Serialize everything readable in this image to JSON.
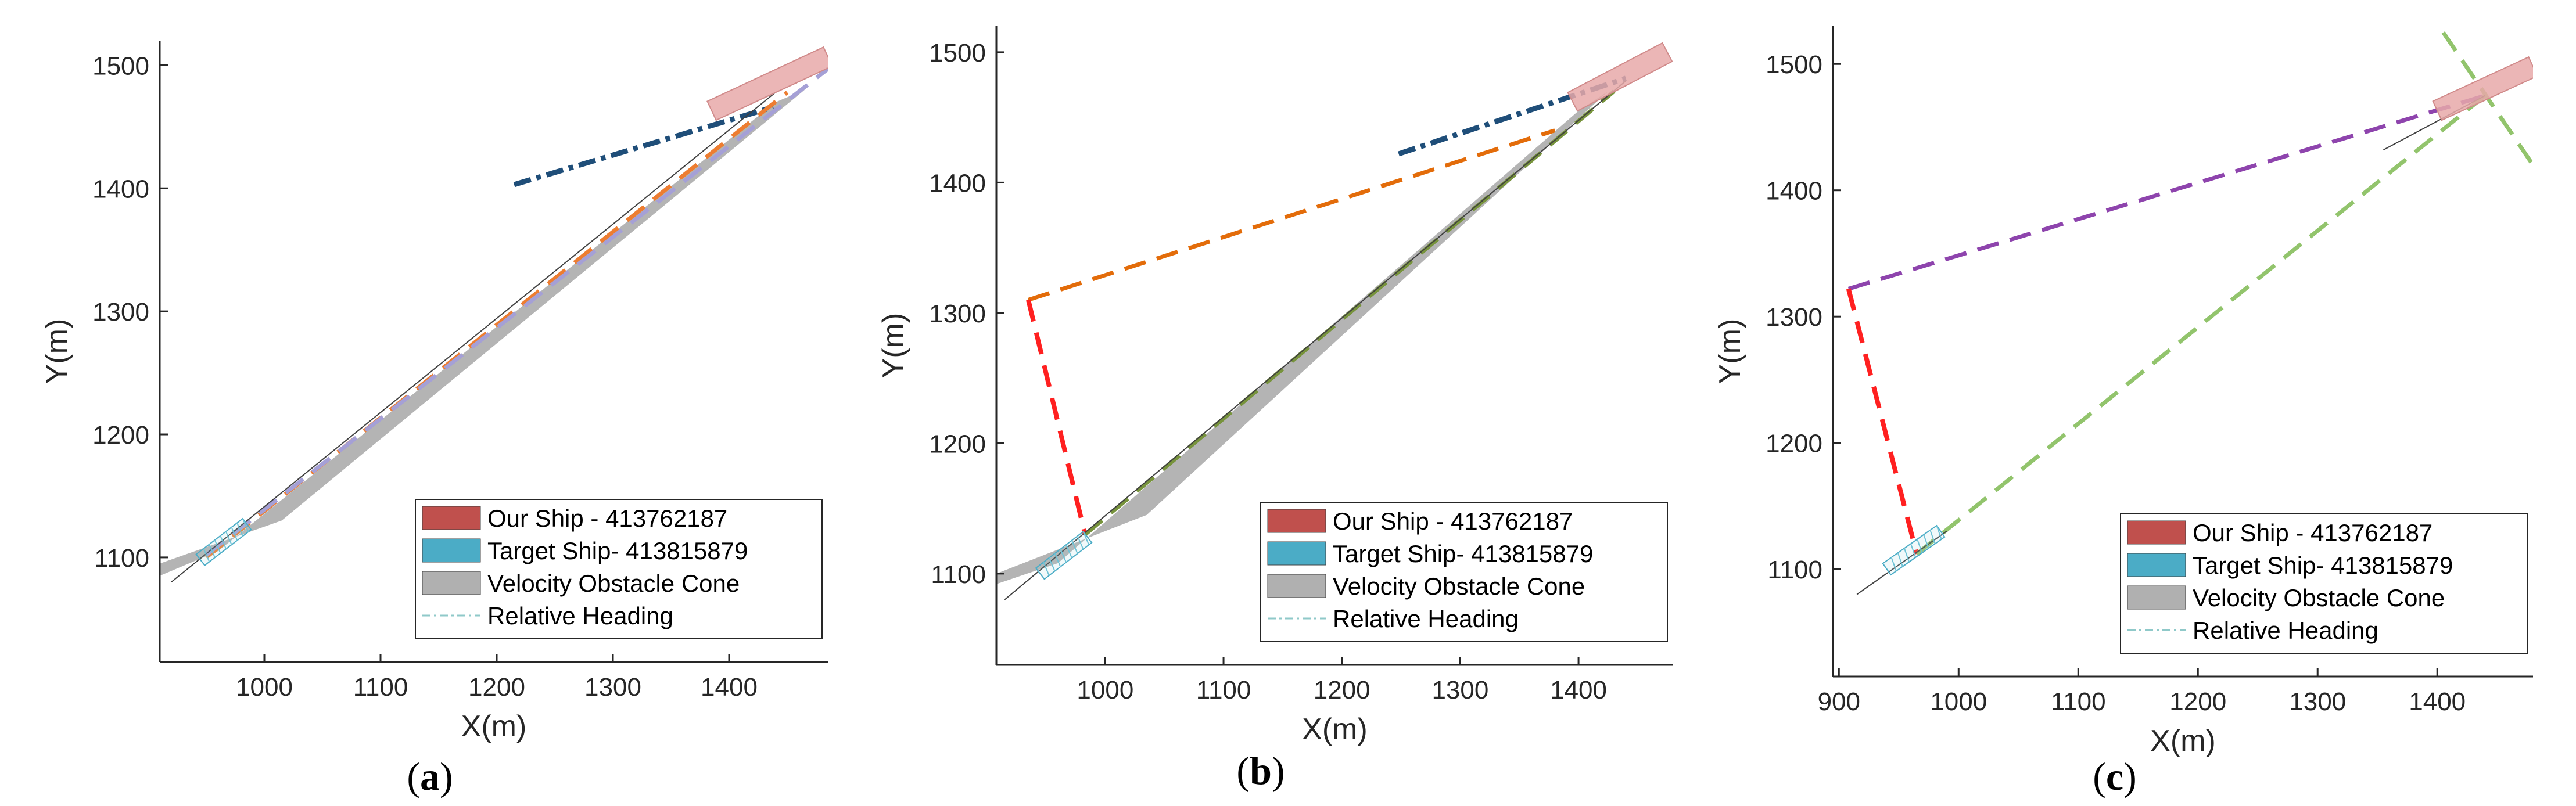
{
  "chart_data": [
    {
      "type": "line",
      "panel": "a",
      "caption": {
        "open": "(",
        "letter": "a",
        "close": ")"
      },
      "xlabel": "X(m)",
      "ylabel": "Y(m)",
      "xlim": [
        910,
        1485
      ],
      "ylim": [
        1015,
        1520
      ],
      "xticks": [
        1000,
        1100,
        1200,
        1300,
        1400
      ],
      "yticks": [
        1100,
        1200,
        1300,
        1400,
        1500
      ],
      "grid": false,
      "legend_position": "bottom-right",
      "legend": [
        {
          "label": "Our Ship - 413762187",
          "kind": "box",
          "color": "#c0504d"
        },
        {
          "label": "Target Ship- 413815879",
          "kind": "box",
          "color": "#4bacc6"
        },
        {
          "label": "Velocity Obstacle Cone",
          "kind": "box",
          "color": "#b0b0b0"
        },
        {
          "label": "Relative Heading",
          "kind": "line",
          "color": "#8fc9c9"
        }
      ],
      "cone": {
        "x": [
          910,
          960,
          1440,
          1465,
          1015,
          910
        ],
        "y": [
          1085,
          1105,
          1470,
          1480,
          1130,
          1095
        ]
      },
      "series": [
        {
          "x": [
            1215,
            1438
          ],
          "y": [
            1403,
            1466
          ],
          "color": "#1f4e79",
          "style": "dashdot",
          "width": 9
        },
        {
          "x": [
            950,
            1450
          ],
          "y": [
            1100,
            1478
          ],
          "color": "#ed7d31",
          "style": "dash",
          "width": 7
        },
        {
          "x": [
            950,
            1485
          ],
          "y": [
            1102,
            1497
          ],
          "color": "#a5a0d6",
          "style": "dash",
          "width": 7
        },
        {
          "x": [
            920,
            1440
          ],
          "y": [
            1080,
            1478
          ],
          "color": "#404040",
          "style": "solid",
          "width": 2
        }
      ],
      "our_ship": {
        "x": [
          1385,
          1485
        ],
        "y": [
          1463,
          1507
        ],
        "color": "#e8a9a9"
      },
      "target_ship": {
        "x": [
          945,
          985
        ],
        "y": [
          1098,
          1127
        ],
        "color": "#9fd4df"
      }
    },
    {
      "type": "line",
      "panel": "b",
      "caption": {
        "open": "(",
        "letter": "b",
        "close": ")"
      },
      "xlabel": "X(m)",
      "ylabel": "Y(m)",
      "xlim": [
        908,
        1480
      ],
      "ylim": [
        1030,
        1520
      ],
      "xticks": [
        1000,
        1100,
        1200,
        1300,
        1400
      ],
      "yticks": [
        1100,
        1200,
        1300,
        1400,
        1500
      ],
      "grid": false,
      "legend_position": "bottom-right",
      "legend": [
        {
          "label": "Our Ship - 413762187",
          "kind": "box",
          "color": "#c0504d"
        },
        {
          "label": "Target Ship- 413815879",
          "kind": "box",
          "color": "#4bacc6"
        },
        {
          "label": "Velocity Obstacle Cone",
          "kind": "box",
          "color": "#b0b0b0"
        },
        {
          "label": "Relative Heading",
          "kind": "line",
          "color": "#8fc9c9"
        }
      ],
      "cone": {
        "x": [
          908,
          960,
          1400,
          1425,
          1035,
          908
        ],
        "y": [
          1092,
          1108,
          1455,
          1470,
          1145,
          1100
        ]
      },
      "series": [
        {
          "x": [
            1248,
            1440
          ],
          "y": [
            1422,
            1480
          ],
          "color": "#1f4e79",
          "style": "dashdot",
          "width": 9
        },
        {
          "x": [
            935,
            1380
          ],
          "y": [
            1310,
            1440
          ],
          "color": "#e36c0a",
          "style": "dash",
          "width": 7
        },
        {
          "x": [
            935,
            983
          ],
          "y": [
            1310,
            1130
          ],
          "color": "#ff2020",
          "style": "dash",
          "width": 8
        },
        {
          "x": [
            983,
            1430
          ],
          "y": [
            1130,
            1470
          ],
          "color": "#77933c",
          "style": "dash",
          "width": 7
        },
        {
          "x": [
            915,
            1440
          ],
          "y": [
            1080,
            1478
          ],
          "color": "#404040",
          "style": "solid",
          "width": 2
        }
      ],
      "our_ship": {
        "x": [
          1395,
          1475
        ],
        "y": [
          1462,
          1500
        ],
        "color": "#e8a9a9"
      },
      "target_ship": {
        "x": [
          945,
          985
        ],
        "y": [
          1100,
          1128
        ],
        "color": "#9fd4df"
      }
    },
    {
      "type": "line",
      "panel": "c",
      "caption": {
        "open": "(",
        "letter": "c",
        "close": ")"
      },
      "xlabel": "X(m)",
      "ylabel": "Y(m)",
      "xlim": [
        895,
        1480
      ],
      "ylim": [
        1015,
        1530
      ],
      "xticks": [
        900,
        1000,
        1100,
        1200,
        1300,
        1400
      ],
      "yticks": [
        1100,
        1200,
        1300,
        1400,
        1500
      ],
      "grid": false,
      "legend_position": "bottom-right",
      "legend": [
        {
          "label": "Our Ship - 413762187",
          "kind": "box",
          "color": "#c0504d"
        },
        {
          "label": "Target Ship- 413815879",
          "kind": "box",
          "color": "#4bacc6"
        },
        {
          "label": "Velocity Obstacle Cone",
          "kind": "box",
          "color": "#b0b0b0"
        },
        {
          "label": "Relative Heading",
          "kind": "line",
          "color": "#8fc9c9"
        }
      ],
      "series": [
        {
          "x": [
            908,
            1440
          ],
          "y": [
            1322,
            1475
          ],
          "color": "#8e44ad",
          "style": "dash",
          "width": 7
        },
        {
          "x": [
            908,
            965
          ],
          "y": [
            1322,
            1112
          ],
          "color": "#ff2020",
          "style": "dash",
          "width": 8
        },
        {
          "x": [
            965,
            1440
          ],
          "y": [
            1112,
            1475
          ],
          "color": "#92c46c",
          "style": "dash",
          "width": 7
        },
        {
          "x": [
            1405,
            1480
          ],
          "y": [
            1525,
            1420
          ],
          "color": "#92c46c",
          "style": "dash",
          "width": 7
        },
        {
          "x": [
            915,
            990
          ],
          "y": [
            1080,
            1130
          ],
          "color": "#404040",
          "style": "solid",
          "width": 2
        },
        {
          "x": [
            1355,
            1440
          ],
          "y": [
            1432,
            1475
          ],
          "color": "#404040",
          "style": "solid",
          "width": 2
        }
      ],
      "our_ship": {
        "x": [
          1400,
          1480
        ],
        "y": [
          1463,
          1498
        ],
        "color": "#e8a9a9"
      },
      "target_ship": {
        "x": [
          940,
          985
        ],
        "y": [
          1100,
          1130
        ],
        "color": "#9fd4df"
      }
    }
  ]
}
